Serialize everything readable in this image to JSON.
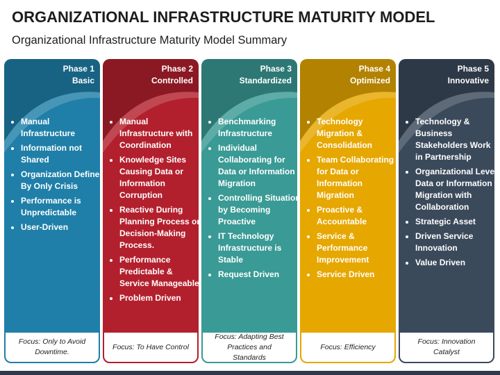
{
  "header": {
    "title": "ORGANIZATIONAL INFRASTRUCTURE MATURITY MODEL",
    "subtitle": "Organizational Infrastructure Maturity Model Summary"
  },
  "phases": [
    {
      "phase": "Phase 1",
      "name": "Basic",
      "items": [
        "Manual Infrastructure",
        "Information not Shared",
        "Organization Defined By Only Crisis",
        "Performance is Unpredictable",
        "User-Driven"
      ],
      "focus": "Focus: Only to Avoid Downtime."
    },
    {
      "phase": "Phase 2",
      "name": "Controlled",
      "items": [
        "Manual Infrastructure with Coordination",
        "Knowledge Sites Causing Data or Information Corruption",
        "Reactive During Planning Process or Decision-Making Process.",
        "Performance Predictable & Service Manageable",
        "Problem Driven"
      ],
      "focus": "Focus: To Have Control"
    },
    {
      "phase": "Phase 3",
      "name": "Standardized",
      "items": [
        "Benchmarking Infrastructure",
        "Individual Collaborating for Data or Information Migration",
        "Controlling Situation by Becoming Proactive",
        "IT Technology Infrastructure is Stable",
        "Request Driven"
      ],
      "focus": "Focus: Adapting Best Practices and Standards"
    },
    {
      "phase": "Phase 4",
      "name": "Optimized",
      "items": [
        "Technology Migration & Consolidation",
        "Team Collaborating for Data or Information Migration",
        "Proactive & Accountable",
        "Service & Performance Improvement",
        "Service Driven"
      ],
      "focus": "Focus: Efficiency"
    },
    {
      "phase": "Phase 5",
      "name": "Innovative",
      "items": [
        "Technology & Business Stakeholders Work in Partnership",
        "Organizational Level Data or Information Migration with Collaboration",
        "Strategic Asset",
        "Driven Service Innovation",
        "Value Driven"
      ],
      "focus": "Focus: Innovation Catalyst"
    }
  ]
}
